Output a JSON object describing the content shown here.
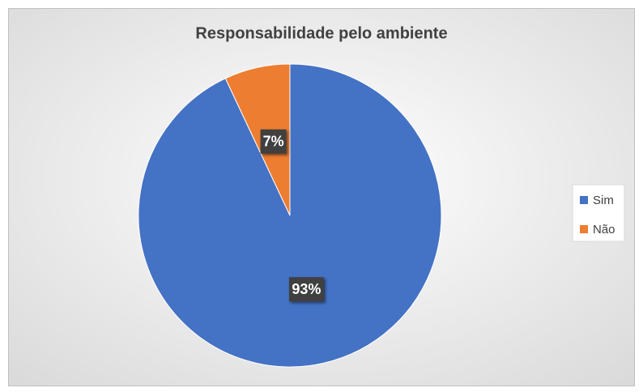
{
  "chart_data": {
    "type": "pie",
    "title": "Responsabilidade pelo ambiente",
    "categories": [
      "Sim",
      "Não"
    ],
    "values": [
      93,
      7
    ],
    "value_labels": [
      "93%",
      "7%"
    ],
    "colors": [
      "#4472c4",
      "#ed7d31"
    ],
    "legend": "right"
  }
}
